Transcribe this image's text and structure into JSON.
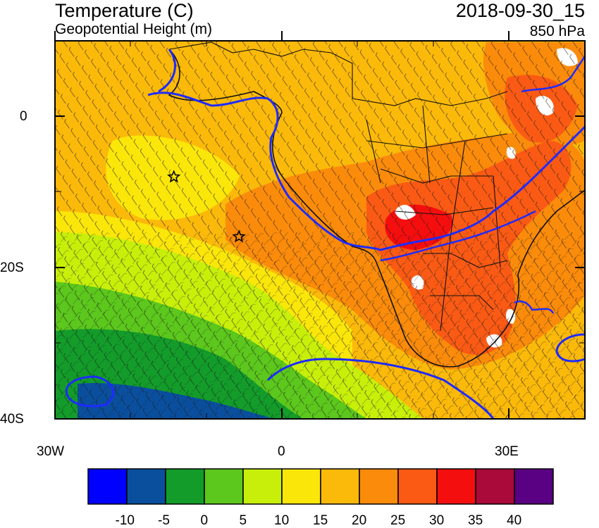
{
  "header": {
    "left_title": "Temperature (C)",
    "left_subtitle": "Geopotential Height (m)",
    "right_title": "2018-09-30_15",
    "right_subtitle": "850 hPa"
  },
  "map": {
    "lon_labels": [
      "30W",
      "0",
      "30E"
    ],
    "lat_labels": [
      "0",
      "20S",
      "40S"
    ],
    "markers": [
      {
        "name": "star-marker",
        "lon": -14.3,
        "lat": -8.0
      },
      {
        "name": "star-marker",
        "lon": -5.7,
        "lat": -15.9
      }
    ]
  },
  "colorbar": {
    "colors": [
      "#0000ff",
      "#0a4f9e",
      "#139c2a",
      "#5cc71c",
      "#c8ef0a",
      "#fbe60a",
      "#fbb90a",
      "#fb8b0a",
      "#fa5a14",
      "#f50e0e",
      "#aa0a3a",
      "#5a0082"
    ],
    "labels": [
      "-10",
      "-5",
      "0",
      "5",
      "10",
      "15",
      "20",
      "25",
      "30",
      "35",
      "40"
    ]
  }
}
